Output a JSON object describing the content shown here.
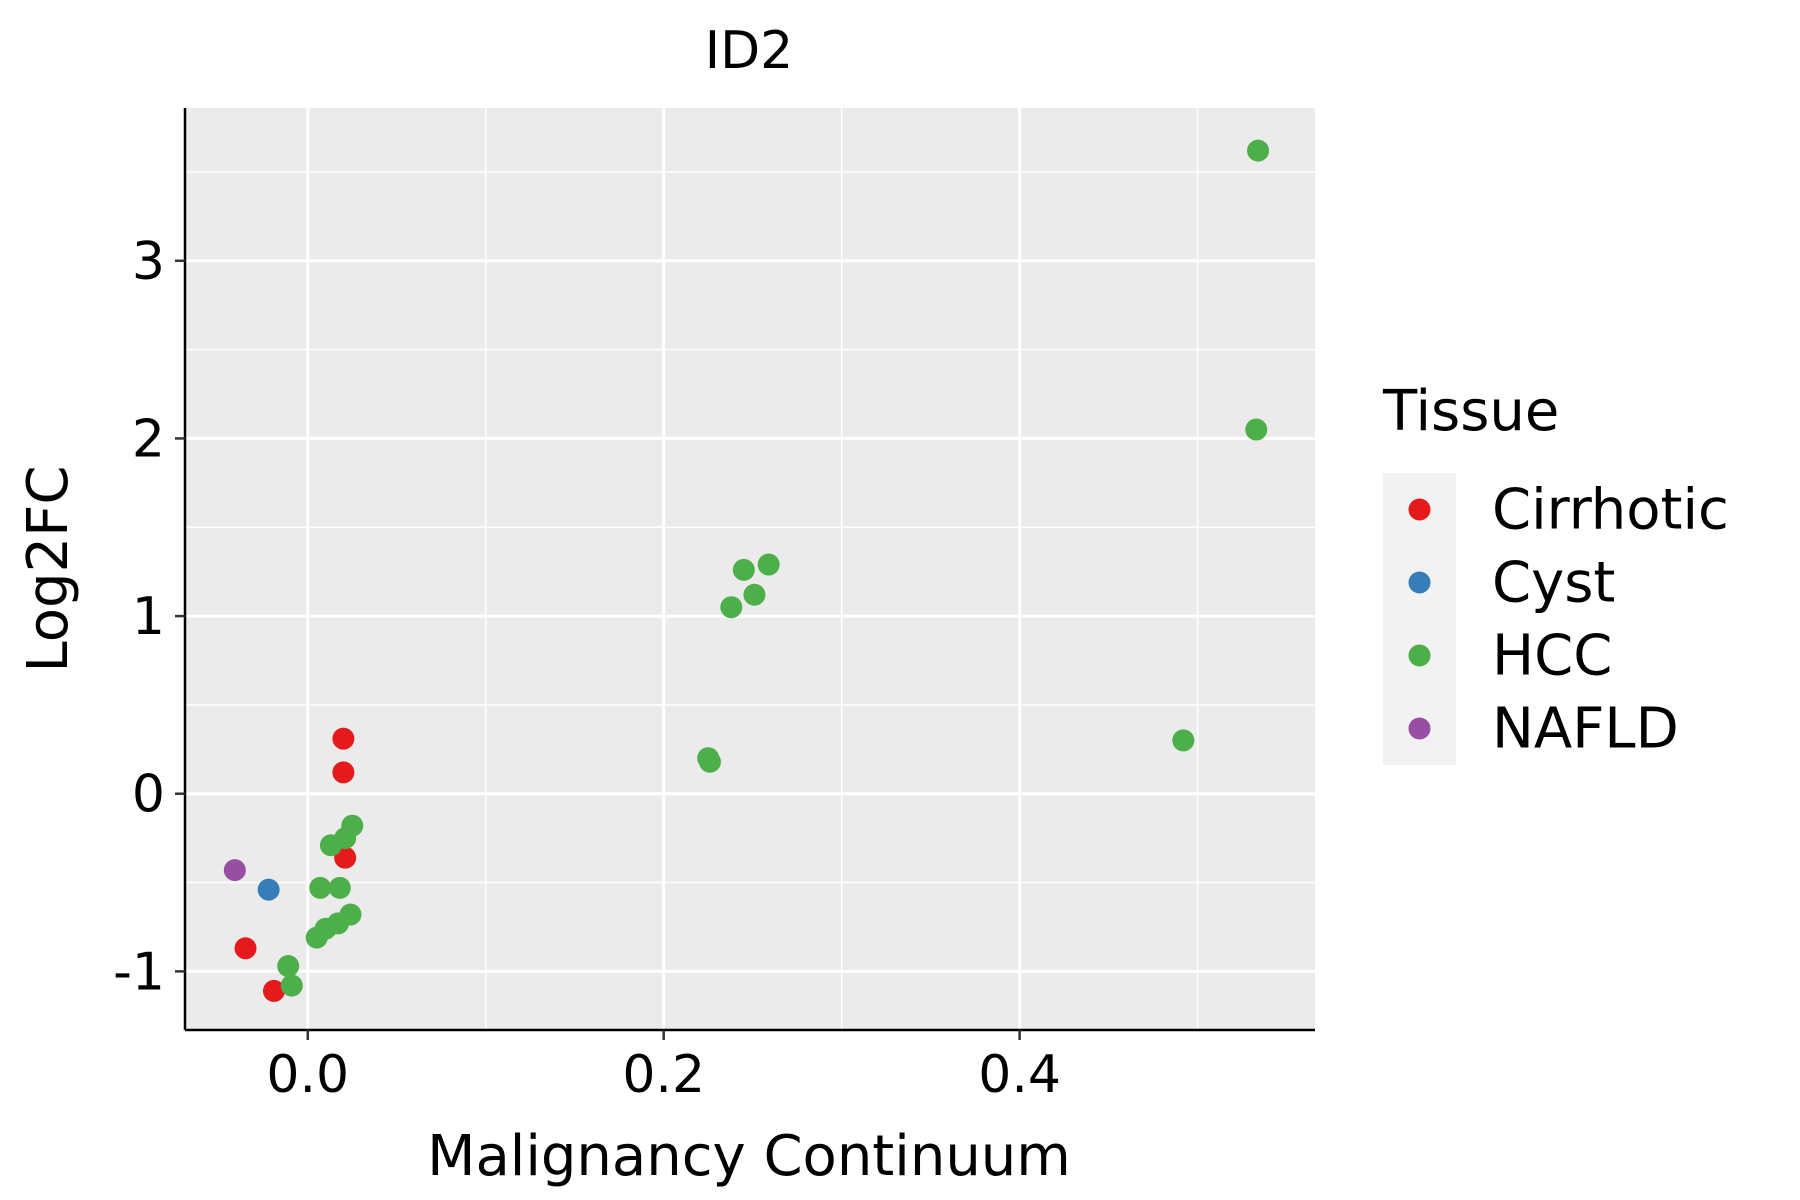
{
  "chart_data": {
    "type": "scatter",
    "title": "ID2",
    "xlabel": "Malignancy Continuum",
    "ylabel": "Log2FC",
    "xlim": [
      -0.069,
      0.566
    ],
    "ylim": [
      -1.33,
      3.86
    ],
    "xticks": [
      0.0,
      0.2,
      0.4
    ],
    "xtick_labels": [
      "0.0",
      "0.2",
      "0.4"
    ],
    "yticks": [
      -1,
      0,
      1,
      2,
      3
    ],
    "ytick_labels": [
      "-1",
      "0",
      "1",
      "2",
      "3"
    ],
    "grid": true,
    "legend": {
      "title": "Tissue",
      "position": "right"
    },
    "series": [
      {
        "name": "Cirrhotic",
        "color": "#E41A1C",
        "points": [
          {
            "x": 0.02,
            "y": 0.31
          },
          {
            "x": 0.02,
            "y": 0.12
          },
          {
            "x": 0.021,
            "y": -0.36
          },
          {
            "x": -0.035,
            "y": -0.87
          },
          {
            "x": -0.019,
            "y": -1.11
          }
        ]
      },
      {
        "name": "Cyst",
        "color": "#377EB8",
        "points": [
          {
            "x": -0.022,
            "y": -0.54
          }
        ]
      },
      {
        "name": "HCC",
        "color": "#4DAF4A",
        "points": [
          {
            "x": 0.534,
            "y": 3.62
          },
          {
            "x": 0.533,
            "y": 2.05
          },
          {
            "x": 0.259,
            "y": 1.29
          },
          {
            "x": 0.245,
            "y": 1.26
          },
          {
            "x": 0.251,
            "y": 1.12
          },
          {
            "x": 0.238,
            "y": 1.05
          },
          {
            "x": 0.225,
            "y": 0.2
          },
          {
            "x": 0.226,
            "y": 0.18
          },
          {
            "x": 0.492,
            "y": 0.3
          },
          {
            "x": 0.025,
            "y": -0.18
          },
          {
            "x": 0.021,
            "y": -0.25
          },
          {
            "x": 0.013,
            "y": -0.29
          },
          {
            "x": 0.007,
            "y": -0.53
          },
          {
            "x": 0.018,
            "y": -0.53
          },
          {
            "x": 0.024,
            "y": -0.68
          },
          {
            "x": 0.017,
            "y": -0.73
          },
          {
            "x": 0.01,
            "y": -0.76
          },
          {
            "x": 0.005,
            "y": -0.81
          },
          {
            "x": -0.011,
            "y": -0.97
          },
          {
            "x": -0.009,
            "y": -1.08
          }
        ]
      },
      {
        "name": "NAFLD",
        "color": "#984EA3",
        "points": [
          {
            "x": -0.041,
            "y": -0.43
          }
        ]
      }
    ]
  }
}
